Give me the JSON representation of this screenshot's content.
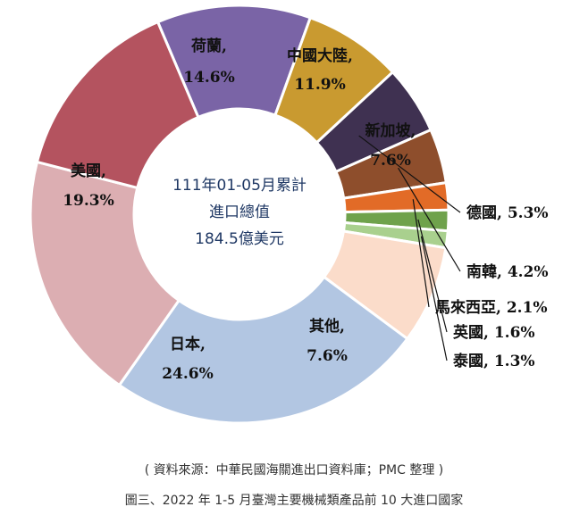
{
  "chart_data": {
    "type": "pie",
    "center_text": [
      "111年01-05月累計",
      "進口總值",
      "184.5億美元"
    ],
    "slices": [
      {
        "name": "中國大陸",
        "value": 11.9,
        "label": "中國大陸,",
        "pct": "11.9%",
        "color": "#7a64a6"
      },
      {
        "name": "新加坡",
        "value": 7.6,
        "label": "新加坡,",
        "pct": "7.6%",
        "color": "#c99a30"
      },
      {
        "name": "德國",
        "value": 5.3,
        "label": "德國, 5.3%",
        "color": "#3f3151"
      },
      {
        "name": "南韓",
        "value": 4.2,
        "label": "南韓, 4.2%",
        "color": "#8e4e2c"
      },
      {
        "name": "馬來西亞",
        "value": 2.1,
        "label": "馬來西亞, 2.1%",
        "color": "#e26b27"
      },
      {
        "name": "英國",
        "value": 1.6,
        "label": "英國, 1.6%",
        "color": "#6fa24c"
      },
      {
        "name": "泰國",
        "value": 1.3,
        "label": "泰國, 1.3%",
        "color": "#a9d08e"
      },
      {
        "name": "其他",
        "value": 7.6,
        "label": "其他,",
        "pct": "7.6%",
        "color": "#fbdcca"
      },
      {
        "name": "日本",
        "value": 24.6,
        "label": "日本,",
        "pct": "24.6%",
        "color": "#b2c6e2"
      },
      {
        "name": "美國",
        "value": 19.3,
        "label": "美國,",
        "pct": "19.3%",
        "color": "#dcaeb2"
      },
      {
        "name": "荷蘭",
        "value": 14.6,
        "label": "荷蘭,",
        "pct": "14.6%",
        "color": "#b4535f"
      }
    ]
  },
  "source_note": "( 資料來源：中華民國海關進出口資料庫；PMC 整理 )",
  "figure_title": "圖三、2022 年 1-5 月臺灣主要機械類產品前 10 大進口國家"
}
